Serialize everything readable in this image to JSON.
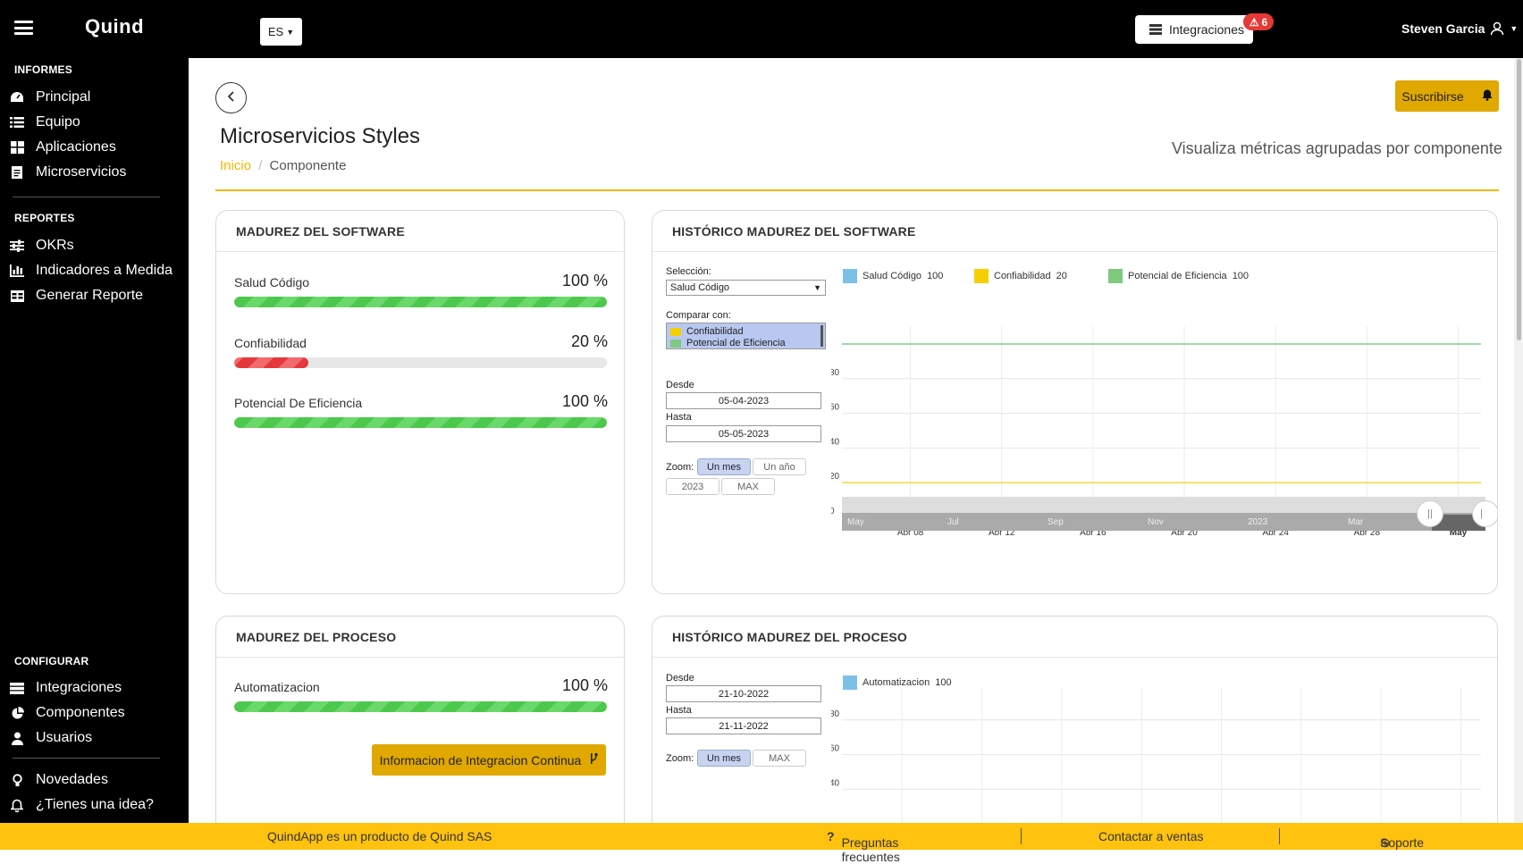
{
  "topbar": {
    "app_name": "Quind",
    "lang": "ES",
    "integrations_label": "Integraciones",
    "integrations_badge": "6",
    "user_name": "Steven Garcia"
  },
  "sidebar": {
    "sections": {
      "informes": "INFORMES",
      "reportes": "REPORTES",
      "configurar": "CONFIGURAR"
    },
    "informes": [
      {
        "label": "Principal",
        "icon": "dashboard-icon"
      },
      {
        "label": "Equipo",
        "icon": "list-icon"
      },
      {
        "label": "Aplicaciones",
        "icon": "grid-icon"
      },
      {
        "label": "Microservicios",
        "icon": "document-icon"
      }
    ],
    "reportes": [
      {
        "label": "OKRs",
        "icon": "sliders-icon"
      },
      {
        "label": "Indicadores a Medida",
        "icon": "bar-chart-icon"
      },
      {
        "label": "Generar Reporte",
        "icon": "table-icon"
      }
    ],
    "configurar": [
      {
        "label": "Integraciones",
        "icon": "server-icon"
      },
      {
        "label": "Componentes",
        "icon": "pie-chart-icon"
      },
      {
        "label": "Usuarios",
        "icon": "user-icon"
      }
    ],
    "extra": [
      {
        "label": "Novedades",
        "icon": "lightbulb-icon"
      },
      {
        "label": "¿Tienes una idea?",
        "icon": "bell-icon"
      }
    ]
  },
  "page": {
    "title": "Microservicios Styles",
    "breadcrumb_home": "Inicio",
    "breadcrumb_current": "Componente",
    "subtitle": "Visualiza métricas agrupadas por componente",
    "subscribe_label": "Suscribirse"
  },
  "software_card": {
    "title": "MADUREZ DEL SOFTWARE",
    "metrics": [
      {
        "label": "Salud Código",
        "value_text": "100 %",
        "value": 100
      },
      {
        "label": "Confiabilidad",
        "value_text": "20 %",
        "value": 20
      },
      {
        "label": "Potencial De Eficiencia",
        "value_text": "100 %",
        "value": 100
      }
    ]
  },
  "process_card": {
    "title": "MADUREZ DEL PROCESO",
    "metrics": [
      {
        "label": "Automatizacion",
        "value_text": "100 %",
        "value": 100
      }
    ],
    "ci_button": "Informacion de Integracion Continua"
  },
  "software_history": {
    "title": "HISTÓRICO MADUREZ DEL SOFTWARE",
    "selection_label": "Selección:",
    "selection_value": "Salud Código",
    "compare_label": "Comparar con:",
    "compare_options": [
      "Confiabilidad",
      "Potencial de Eficiencia"
    ],
    "from_label": "Desde",
    "from_value": "05-04-2023",
    "to_label": "Hasta",
    "to_value": "05-05-2023",
    "zoom_label": "Zoom:",
    "zoom_buttons": [
      "Un mes",
      "Un año",
      "2023",
      "MAX"
    ],
    "navigator_labels": [
      "May",
      "Jul",
      "Sep",
      "Nov",
      "2023",
      "Mar"
    ]
  },
  "process_history": {
    "title": "HISTÓRICO MADUREZ DEL PROCESO",
    "from_label": "Desde",
    "from_value": "21-10-2022",
    "to_label": "Hasta",
    "to_value": "21-11-2022",
    "zoom_label": "Zoom:",
    "zoom_buttons": [
      "Un mes",
      "MAX"
    ]
  },
  "chart_data": [
    {
      "type": "line",
      "x": [
        "Abr 08",
        "Abr 12",
        "Abr 16",
        "Abr 20",
        "Abr 24",
        "Abr 28",
        "May"
      ],
      "ylim": [
        0,
        100
      ],
      "yticks": [
        0,
        20,
        40,
        60,
        80
      ],
      "series": [
        {
          "name": "Salud Código",
          "legend_value": "100",
          "color": "#7cc0e8",
          "values": [
            100,
            100,
            100,
            100,
            100,
            100,
            100
          ]
        },
        {
          "name": "Confiabilidad",
          "legend_value": "20",
          "color": "#f5d000",
          "values": [
            20,
            20,
            20,
            20,
            20,
            20,
            20
          ]
        },
        {
          "name": "Potencial de Eficiencia",
          "legend_value": "100",
          "color": "#7fc97f",
          "values": [
            100,
            100,
            100,
            100,
            100,
            100,
            100
          ]
        }
      ]
    },
    {
      "type": "line",
      "ylim": [
        0,
        100
      ],
      "yticks": [
        40,
        60,
        80
      ],
      "series": [
        {
          "name": "Automatizacion",
          "legend_value": "100",
          "color": "#7cc0e8",
          "values": [
            100,
            100,
            100,
            100,
            100,
            100,
            100
          ]
        }
      ]
    }
  ],
  "footer": {
    "product": "QuindApp es un producto de Quind SAS",
    "faq": "Preguntas frecuentes",
    "sales": "Contactar a ventas",
    "support": "Soporte"
  },
  "colors": {
    "accent": "#f5b700",
    "button": "#e0a800",
    "footer": "#ffc20e",
    "bar_green": "#4cc94c",
    "bar_red": "#e5373c"
  }
}
